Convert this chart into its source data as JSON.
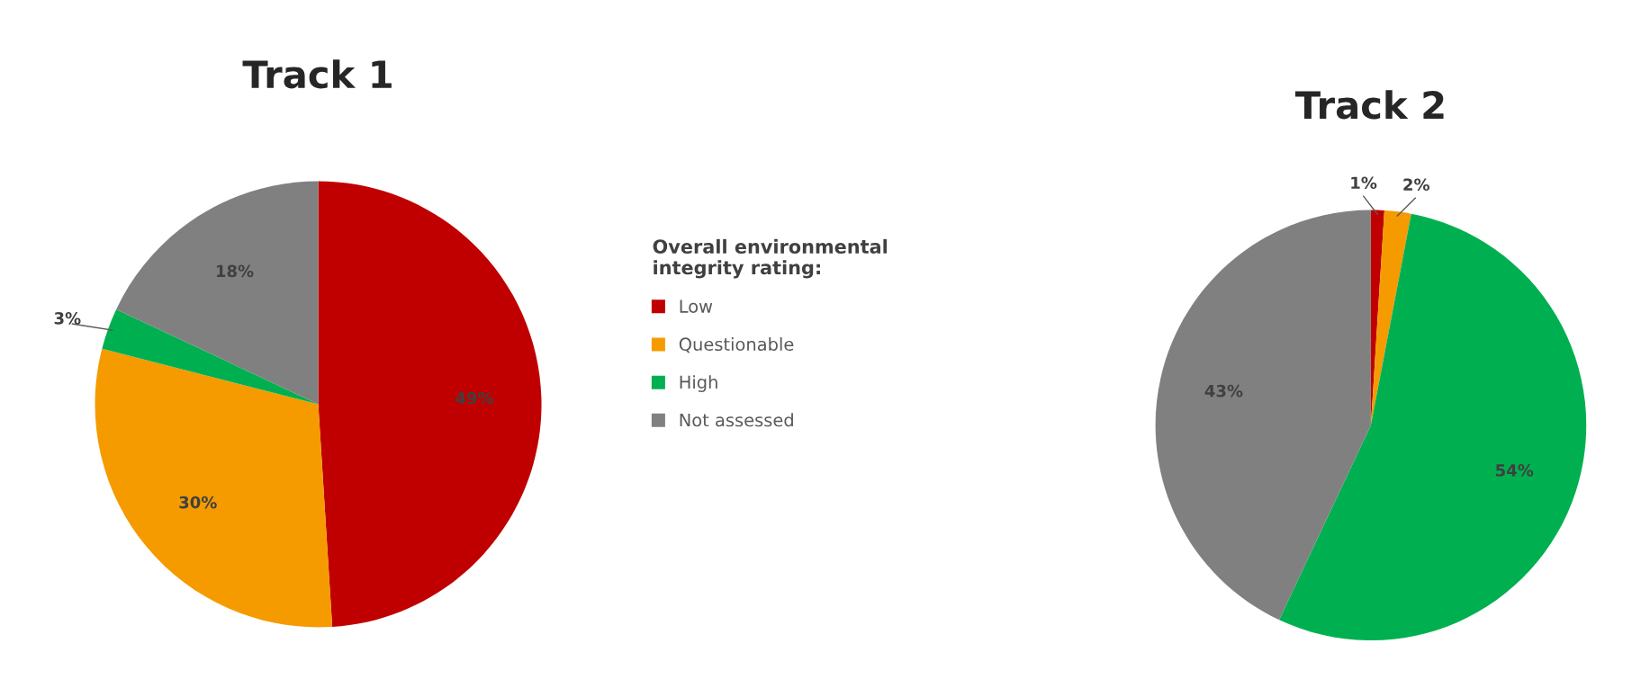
{
  "chart_data": [
    {
      "type": "pie",
      "title": "Track 1",
      "categories": [
        "Low",
        "Questionable",
        "High",
        "Not assessed"
      ],
      "values": [
        49,
        30,
        3,
        18
      ],
      "value_labels": [
        "49%",
        "30%",
        "3%",
        "18%"
      ],
      "colors": [
        "#c00000",
        "#f59b00",
        "#00b050",
        "#808080"
      ],
      "legend": "right",
      "legend_title": "Overall environmental\nintegrity rating:"
    },
    {
      "type": "pie",
      "title": "Track 2",
      "categories": [
        null,
        null,
        null,
        null
      ],
      "values": [
        1,
        2,
        54,
        43
      ],
      "value_labels": [
        "1%",
        "2%",
        "54%",
        "43%"
      ],
      "colors": [
        "#c00000",
        "#f59b00",
        "#00b050",
        "#808080"
      ]
    }
  ]
}
